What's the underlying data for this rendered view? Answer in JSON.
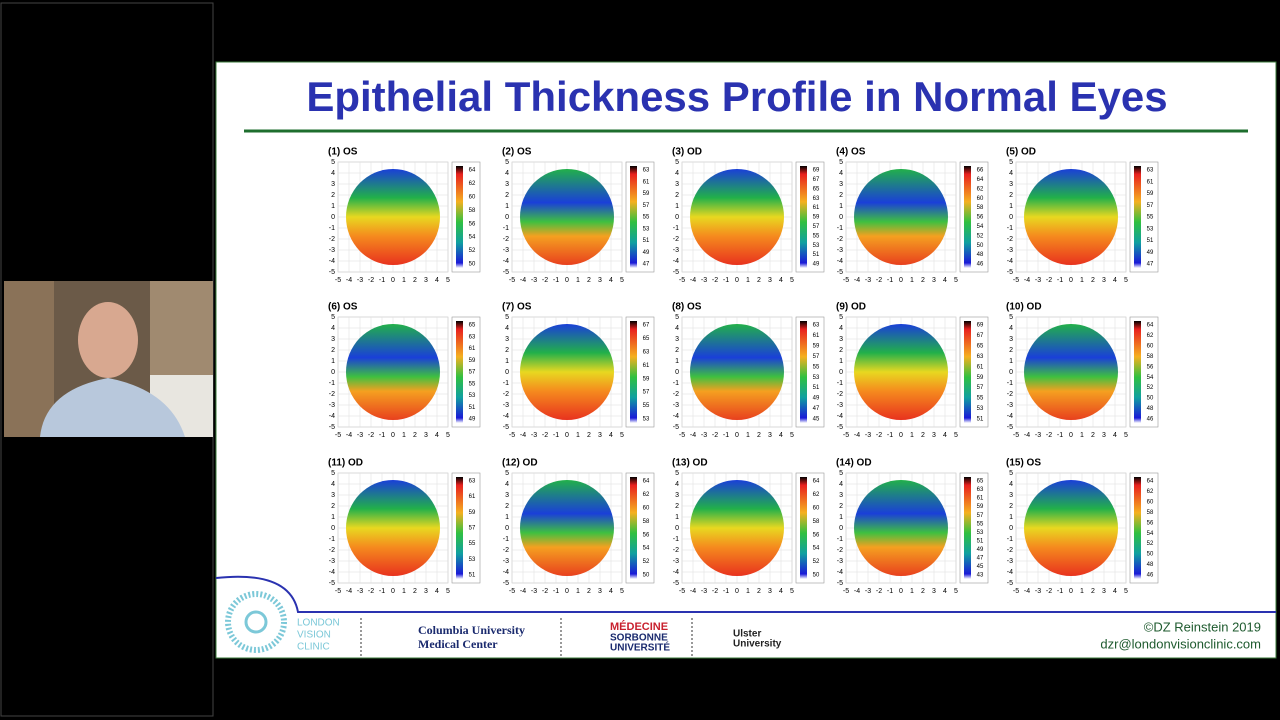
{
  "slide": {
    "title": "Epithelial Thickness Profile in Normal Eyes",
    "axis_ticks": [
      -5,
      -4,
      -3,
      -2,
      -1,
      0,
      1,
      2,
      3,
      4,
      5
    ],
    "maps": [
      {
        "label": "(1) OS",
        "scale": [
          64,
          62,
          60,
          58,
          56,
          54,
          52,
          50
        ]
      },
      {
        "label": "(2) OS",
        "scale": [
          63,
          61,
          59,
          57,
          55,
          53,
          51,
          49,
          47
        ]
      },
      {
        "label": "(3) OD",
        "scale": [
          69,
          67,
          65,
          63,
          61,
          59,
          57,
          55,
          53,
          51,
          49
        ]
      },
      {
        "label": "(4) OS",
        "scale": [
          66,
          64,
          62,
          60,
          58,
          56,
          54,
          52,
          50,
          48,
          46
        ]
      },
      {
        "label": "(5) OD",
        "scale": [
          63,
          61,
          59,
          57,
          55,
          53,
          51,
          49,
          47
        ]
      },
      {
        "label": "(6) OS",
        "scale": [
          65,
          63,
          61,
          59,
          57,
          55,
          53,
          51,
          49
        ]
      },
      {
        "label": "(7) OS",
        "scale": [
          67,
          65,
          63,
          61,
          59,
          57,
          55,
          53
        ]
      },
      {
        "label": "(8) OS",
        "scale": [
          63,
          61,
          59,
          57,
          55,
          53,
          51,
          49,
          47,
          45
        ]
      },
      {
        "label": "(9) OD",
        "scale": [
          69,
          67,
          65,
          63,
          61,
          59,
          57,
          55,
          53,
          51
        ]
      },
      {
        "label": "(10) OD",
        "scale": [
          64,
          62,
          60,
          58,
          56,
          54,
          52,
          50,
          48,
          46
        ]
      },
      {
        "label": "(11) OD",
        "scale": [
          63,
          61,
          59,
          57,
          55,
          53,
          51
        ]
      },
      {
        "label": "(12) OD",
        "scale": [
          64,
          62,
          60,
          58,
          56,
          54,
          52,
          50
        ]
      },
      {
        "label": "(13) OD",
        "scale": [
          64,
          62,
          60,
          58,
          56,
          54,
          52,
          50
        ]
      },
      {
        "label": "(14) OD",
        "scale": [
          65,
          63,
          61,
          59,
          57,
          55,
          53,
          51,
          49,
          47,
          45,
          43
        ]
      },
      {
        "label": "(15) OS",
        "scale": [
          64,
          62,
          60,
          58,
          56,
          54,
          52,
          50,
          48,
          46
        ]
      }
    ],
    "footer": {
      "logos": [
        "LONDON",
        "VISION",
        "CLINIC",
        "Columbia University",
        "Medical Center",
        "MÉDECINE",
        "SORBONNE",
        "UNIVERSITÉ",
        "Ulster",
        "University"
      ],
      "copyright": "©DZ Reinstein 2019",
      "email": "dzr@londonvisionclinic.com"
    }
  }
}
